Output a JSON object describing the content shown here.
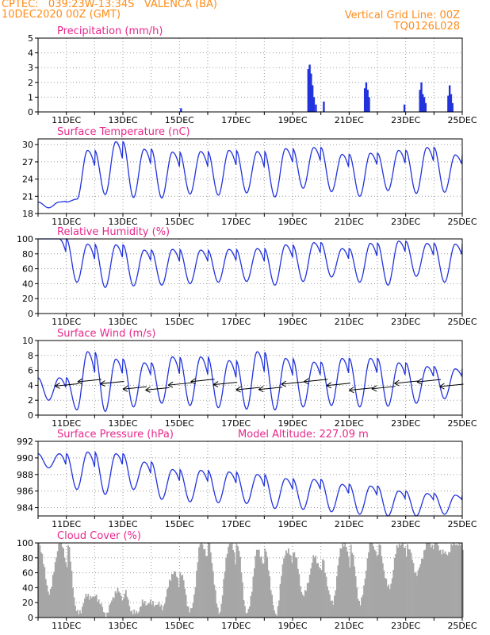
{
  "header": {
    "left_line1": "CPTEC:   039:23W-13:34S   VALENCA (BA)",
    "left_line2": "10DEC2020 00Z (GMT)",
    "right_line1": "Vertical Grid Line: 00Z",
    "right_line2": "TQ0126L028"
  },
  "colors": {
    "header": "#ff8c1a",
    "title": "#e8288c",
    "series": "#2233dd",
    "cloud": "#a6a6a6"
  },
  "x_ticks": [
    "11DEC",
    "13DEC",
    "15DEC",
    "17DEC",
    "19DEC",
    "21DEC",
    "23DEC",
    "25DEC"
  ],
  "chart_data": [
    {
      "type": "bar",
      "title": "Precipitation (mm/h)",
      "ylim": [
        0,
        5
      ],
      "yticks": [
        0,
        1,
        2,
        3,
        4,
        5
      ],
      "x_days": [
        0,
        15
      ],
      "events": [
        {
          "day": 5.05,
          "value": 0.25
        },
        {
          "day": 9.55,
          "value": 2.9
        },
        {
          "day": 9.6,
          "value": 3.2
        },
        {
          "day": 9.65,
          "value": 2.6
        },
        {
          "day": 9.7,
          "value": 1.8
        },
        {
          "day": 9.75,
          "value": 1.0
        },
        {
          "day": 9.82,
          "value": 0.5
        },
        {
          "day": 10.1,
          "value": 0.7
        },
        {
          "day": 11.55,
          "value": 1.6
        },
        {
          "day": 11.6,
          "value": 2.0
        },
        {
          "day": 11.65,
          "value": 1.5
        },
        {
          "day": 11.7,
          "value": 1.0
        },
        {
          "day": 12.95,
          "value": 0.5
        },
        {
          "day": 13.5,
          "value": 1.5
        },
        {
          "day": 13.55,
          "value": 2.0
        },
        {
          "day": 13.6,
          "value": 1.2
        },
        {
          "day": 13.65,
          "value": 1.0
        },
        {
          "day": 13.7,
          "value": 0.6
        },
        {
          "day": 14.5,
          "value": 1.1
        },
        {
          "day": 14.55,
          "value": 1.8
        },
        {
          "day": 14.6,
          "value": 1.2
        },
        {
          "day": 14.65,
          "value": 0.6
        }
      ]
    },
    {
      "type": "line",
      "title": "Surface Temperature (nC)",
      "ylim": [
        18,
        31
      ],
      "yticks": [
        18,
        21,
        24,
        27,
        30
      ],
      "x_days": [
        0,
        15
      ],
      "daily_max": [
        20,
        29,
        30.5,
        29.2,
        28.7,
        28.8,
        29,
        28.8,
        29.3,
        29.5,
        28.3,
        28.5,
        29,
        29.5,
        28.2,
        28
      ],
      "daily_min": [
        19,
        20.5,
        21.3,
        20.8,
        20.7,
        21.4,
        21.2,
        21.6,
        20.9,
        22.4,
        21.8,
        21,
        22,
        21.5,
        21.7,
        23
      ]
    },
    {
      "type": "line",
      "title": "Relative Humidity (%)",
      "ylim": [
        0,
        100
      ],
      "yticks": [
        0,
        20,
        40,
        60,
        80,
        100
      ],
      "x_days": [
        0,
        15
      ],
      "daily_max": [
        100,
        93,
        92,
        85,
        86,
        85,
        86,
        87,
        92,
        95,
        87,
        94,
        97,
        94,
        93,
        90
      ],
      "daily_min": [
        100,
        42,
        35,
        37,
        38,
        40,
        42,
        43,
        38,
        43,
        49,
        42,
        38,
        50,
        42,
        47
      ]
    },
    {
      "type": "line",
      "title": "Surface Wind (m/s)",
      "ylim": [
        0,
        10
      ],
      "yticks": [
        0,
        2,
        4,
        6,
        8,
        10
      ],
      "x_days": [
        0,
        15
      ],
      "daily_max": [
        5,
        8.5,
        7.5,
        7,
        7.8,
        7.8,
        7.3,
        8.5,
        7.6,
        7.1,
        7.6,
        7.6,
        7,
        6.5,
        6.2,
        5
      ],
      "daily_min": [
        2,
        0.7,
        0.5,
        1.1,
        1.6,
        1.3,
        1,
        0.8,
        0.7,
        1.1,
        1.3,
        1.1,
        1.2,
        1.6,
        2.2,
        3
      ]
    },
    {
      "type": "line",
      "title": "Surface Pressure (hPa)",
      "annotation": "Model Altitude: 227.09 m",
      "ylim": [
        983,
        992
      ],
      "yticks": [
        984,
        986,
        988,
        990,
        992
      ],
      "x_days": [
        0,
        15
      ],
      "daily_max": [
        990.5,
        990.7,
        990.5,
        989.5,
        988.6,
        988.5,
        988.3,
        988,
        987.5,
        987.4,
        986.8,
        986.6,
        986,
        985.7,
        985.5,
        985.8
      ],
      "daily_min": [
        988.8,
        986.2,
        985.6,
        986.2,
        985,
        984.7,
        984.6,
        984.5,
        983.9,
        983.8,
        983.5,
        983.2,
        983,
        983,
        983.2,
        983.8
      ]
    },
    {
      "type": "bar",
      "title": "Cloud Cover (%)",
      "ylim": [
        0,
        100
      ],
      "yticks": [
        0,
        20,
        40,
        60,
        80,
        100
      ],
      "x_days": [
        0,
        15
      ],
      "daily_max": [
        100,
        30,
        35,
        20,
        60,
        100,
        100,
        90,
        90,
        80,
        100,
        100,
        100,
        100,
        100,
        100
      ],
      "daily_min": [
        35,
        5,
        5,
        5,
        15,
        8,
        8,
        5,
        5,
        30,
        20,
        20,
        40,
        60,
        85,
        80
      ]
    }
  ]
}
